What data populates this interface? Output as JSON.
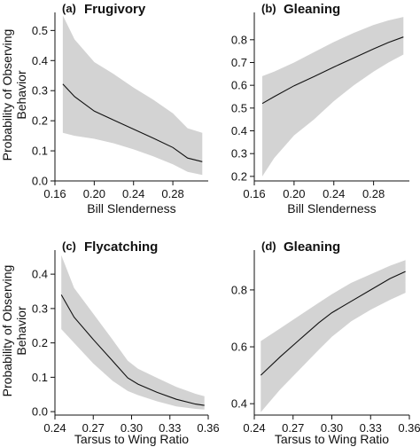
{
  "figure": {
    "ylabel_line1": "Probability of Observing",
    "ylabel_line2": "Behavior"
  },
  "chart_data": [
    {
      "type": "line",
      "panel": "(a)",
      "title": "Frugivory",
      "xlabel": "Bill Slenderness",
      "ylabel": "Probability of Observing Behavior",
      "xlim": [
        0.16,
        0.316
      ],
      "ylim": [
        0.0,
        0.56
      ],
      "xticks": [
        0.16,
        0.2,
        0.24,
        0.28
      ],
      "xtick_labels": [
        "0.16",
        "0.20",
        "0.24",
        "0.28"
      ],
      "yticks": [
        0.0,
        0.1,
        0.2,
        0.3,
        0.4,
        0.5
      ],
      "ytick_labels": [
        "0.0",
        "0.1",
        "0.2",
        "0.3",
        "0.4",
        "0.5"
      ],
      "x": [
        0.168,
        0.18,
        0.2,
        0.22,
        0.24,
        0.26,
        0.28,
        0.295,
        0.31
      ],
      "y": [
        0.322,
        0.28,
        0.232,
        0.202,
        0.172,
        0.142,
        0.111,
        0.076,
        0.064
      ],
      "lower": [
        0.16,
        0.15,
        0.14,
        0.125,
        0.105,
        0.082,
        0.055,
        0.03,
        0.02
      ],
      "upper": [
        0.55,
        0.47,
        0.395,
        0.355,
        0.31,
        0.27,
        0.225,
        0.175,
        0.16
      ]
    },
    {
      "type": "line",
      "panel": "(b)",
      "title": "Gleaning",
      "xlabel": "Bill Slenderness",
      "ylabel": "",
      "xlim": [
        0.16,
        0.316
      ],
      "ylim": [
        0.18,
        0.92
      ],
      "xticks": [
        0.16,
        0.2,
        0.24,
        0.28
      ],
      "xtick_labels": [
        "0.16",
        "0.20",
        "0.24",
        "0.28"
      ],
      "yticks": [
        0.2,
        0.3,
        0.4,
        0.5,
        0.6,
        0.7,
        0.8
      ],
      "ytick_labels": [
        "0.2",
        "0.3",
        "0.4",
        "0.5",
        "0.6",
        "0.7",
        "0.8"
      ],
      "x": [
        0.168,
        0.18,
        0.2,
        0.22,
        0.24,
        0.26,
        0.28,
        0.295,
        0.31
      ],
      "y": [
        0.52,
        0.55,
        0.598,
        0.638,
        0.68,
        0.72,
        0.76,
        0.788,
        0.812
      ],
      "lower": [
        0.2,
        0.28,
        0.38,
        0.45,
        0.53,
        0.6,
        0.66,
        0.7,
        0.735
      ],
      "upper": [
        0.64,
        0.66,
        0.7,
        0.745,
        0.79,
        0.83,
        0.865,
        0.885,
        0.9
      ]
    },
    {
      "type": "line",
      "panel": "(c)",
      "title": "Flycatching",
      "xlabel": "Tarsus to Wing Ratio",
      "ylabel": "Probability of Observing Behavior",
      "xlim": [
        0.24,
        0.36
      ],
      "ylim": [
        -0.01,
        0.47
      ],
      "xticks": [
        0.24,
        0.27,
        0.3,
        0.33,
        0.36
      ],
      "xtick_labels": [
        "0.24",
        "0.27",
        "0.30",
        "0.33",
        "0.36"
      ],
      "yticks": [
        0.0,
        0.1,
        0.2,
        0.3,
        0.4
      ],
      "ytick_labels": [
        "0.0",
        "0.1",
        "0.2",
        "0.3",
        "0.4"
      ],
      "x": [
        0.245,
        0.255,
        0.27,
        0.285,
        0.297,
        0.305,
        0.32,
        0.335,
        0.35,
        0.357
      ],
      "y": [
        0.34,
        0.275,
        0.21,
        0.148,
        0.098,
        0.08,
        0.056,
        0.036,
        0.022,
        0.018
      ],
      "lower": [
        0.24,
        0.2,
        0.14,
        0.09,
        0.06,
        0.048,
        0.03,
        0.015,
        0.008,
        0.006
      ],
      "upper": [
        0.455,
        0.36,
        0.285,
        0.21,
        0.148,
        0.125,
        0.098,
        0.072,
        0.052,
        0.045
      ]
    },
    {
      "type": "line",
      "panel": "(d)",
      "title": "Gleaning",
      "xlabel": "Tarsus to Wing Ratio",
      "ylabel": "",
      "xlim": [
        0.24,
        0.36
      ],
      "ylim": [
        0.36,
        0.94
      ],
      "xticks": [
        0.24,
        0.27,
        0.3,
        0.33,
        0.36
      ],
      "xtick_labels": [
        "0.24",
        "0.27",
        "0.30",
        "0.33",
        "0.36"
      ],
      "yticks": [
        0.4,
        0.6,
        0.8
      ],
      "ytick_labels": [
        "0.4",
        "0.6",
        "0.8"
      ],
      "x": [
        0.245,
        0.26,
        0.275,
        0.29,
        0.3,
        0.315,
        0.33,
        0.345,
        0.357
      ],
      "y": [
        0.5,
        0.565,
        0.625,
        0.685,
        0.72,
        0.76,
        0.8,
        0.84,
        0.865
      ],
      "lower": [
        0.37,
        0.45,
        0.52,
        0.59,
        0.635,
        0.69,
        0.73,
        0.765,
        0.79
      ],
      "upper": [
        0.62,
        0.665,
        0.71,
        0.755,
        0.785,
        0.825,
        0.855,
        0.885,
        0.905
      ]
    }
  ]
}
